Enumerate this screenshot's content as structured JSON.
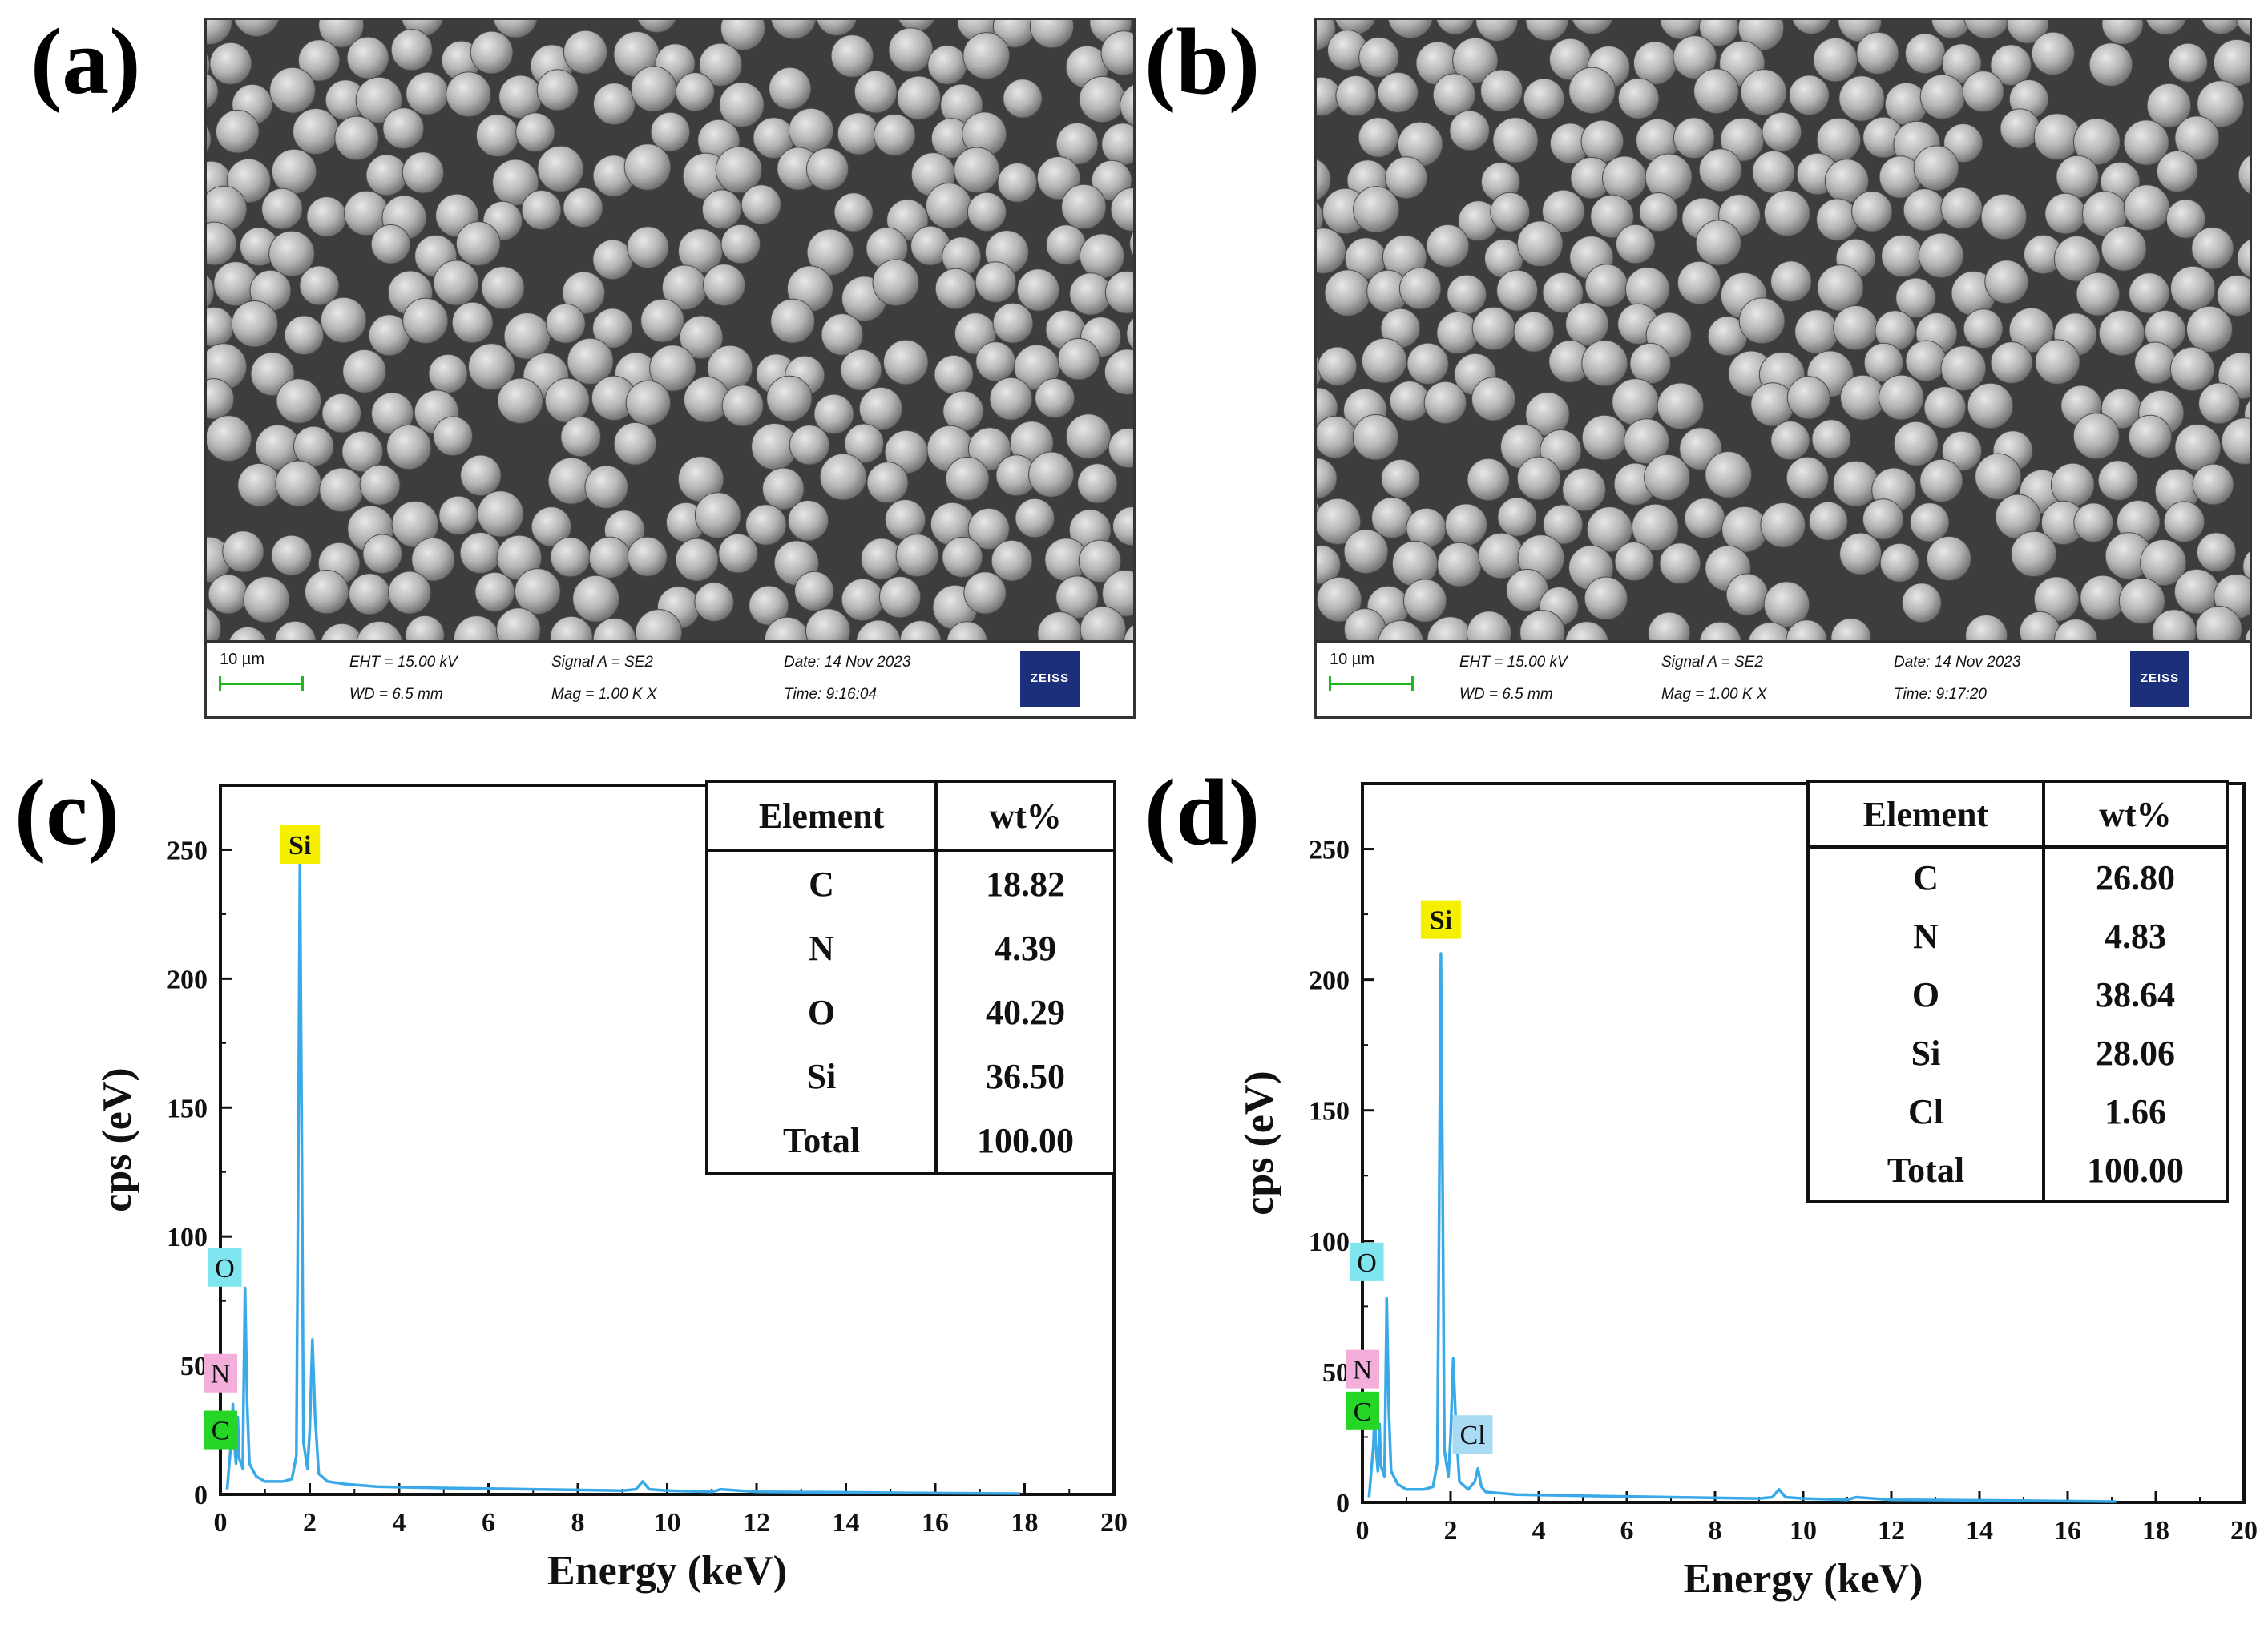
{
  "panels": {
    "a": {
      "letter": "(a)",
      "sem_info": {
        "scale_label": "10 µm",
        "eht": "EHT = 15.00 kV",
        "wd": "WD = 6.5 mm",
        "signal": "Signal A = SE2",
        "mag": "Mag =    1.00 K X",
        "date": "Date: 14 Nov 2023",
        "time": "Time: 9:16:04",
        "logo": "ZEISS"
      }
    },
    "b": {
      "letter": "(b)",
      "sem_info": {
        "scale_label": "10 µm",
        "eht": "EHT = 15.00 kV",
        "wd": "WD = 6.5 mm",
        "signal": "Signal A = SE2",
        "mag": "Mag =    1.00 K X",
        "date": "Date: 14 Nov 2023",
        "time": "Time: 9:17:20",
        "logo": "ZEISS"
      }
    },
    "c": {
      "letter": "(c)"
    },
    "d": {
      "letter": "(d)"
    }
  },
  "colors": {
    "spectrum": "#3aa9e8",
    "label_si": "#f5f000",
    "label_o": "#7fe6ef",
    "label_n": "#f4aedb",
    "label_c": "#26d626",
    "label_cl": "#a9dcf4"
  },
  "chart_data": [
    {
      "id": "c",
      "type": "line",
      "title": "",
      "xlabel": "Energy (keV)",
      "ylabel": "cps (eV)",
      "xlim": [
        0,
        20
      ],
      "ylim": [
        0,
        275
      ],
      "xticks": [
        0,
        2,
        4,
        6,
        8,
        10,
        12,
        14,
        16,
        18,
        20
      ],
      "yticks": [
        0,
        50,
        100,
        150,
        200,
        250
      ],
      "x": [
        0.15,
        0.25,
        0.28,
        0.3,
        0.35,
        0.39,
        0.42,
        0.5,
        0.52,
        0.55,
        0.6,
        0.65,
        0.8,
        1.0,
        1.2,
        1.4,
        1.6,
        1.7,
        1.74,
        1.78,
        1.82,
        1.86,
        1.95,
        2.0,
        2.06,
        2.12,
        2.2,
        2.4,
        2.8,
        3.5,
        5,
        7,
        9,
        9.3,
        9.45,
        9.6,
        10,
        11,
        11.2,
        12,
        14,
        16,
        17.9
      ],
      "y": [
        2,
        22,
        35,
        22,
        12,
        30,
        14,
        10,
        40,
        80,
        35,
        12,
        7,
        5,
        5,
        5,
        6,
        15,
        120,
        245,
        140,
        20,
        10,
        25,
        60,
        30,
        8,
        5,
        4,
        3,
        2.5,
        2,
        1.5,
        2,
        5,
        2,
        1.5,
        1,
        2,
        1,
        0.8,
        0.5,
        0.3
      ],
      "peak_labels": [
        {
          "text": "Si",
          "x": 1.78,
          "y": 252,
          "color": "label_si"
        },
        {
          "text": "O",
          "x": 0.1,
          "y": 88,
          "color": "label_o"
        },
        {
          "text": "N",
          "x": 0.0,
          "y": 47,
          "color": "label_n"
        },
        {
          "text": "C",
          "x": 0.0,
          "y": 25,
          "color": "label_c"
        }
      ],
      "table": {
        "headers": [
          "Element",
          "wt%"
        ],
        "rows": [
          [
            "C",
            "18.82"
          ],
          [
            "N",
            "4.39"
          ],
          [
            "O",
            "40.29"
          ],
          [
            "Si",
            "36.50"
          ],
          [
            "Total",
            "100.00"
          ]
        ]
      }
    },
    {
      "id": "d",
      "type": "line",
      "title": "",
      "xlabel": "Energy (keV)",
      "ylabel": "cps (eV)",
      "xlim": [
        0,
        20
      ],
      "ylim": [
        0,
        275
      ],
      "xticks": [
        0,
        2,
        4,
        6,
        8,
        10,
        12,
        14,
        16,
        18,
        20
      ],
      "yticks": [
        0,
        50,
        100,
        150,
        200,
        250
      ],
      "x": [
        0.15,
        0.25,
        0.28,
        0.3,
        0.35,
        0.39,
        0.42,
        0.5,
        0.52,
        0.55,
        0.6,
        0.65,
        0.8,
        1.0,
        1.2,
        1.4,
        1.6,
        1.7,
        1.74,
        1.78,
        1.82,
        1.86,
        1.95,
        2.0,
        2.06,
        2.12,
        2.2,
        2.4,
        2.55,
        2.62,
        2.7,
        2.8,
        3.5,
        5,
        7,
        9,
        9.3,
        9.45,
        9.6,
        10,
        11,
        11.2,
        12,
        14,
        16,
        17.1
      ],
      "y": [
        2,
        22,
        38,
        22,
        12,
        30,
        14,
        10,
        35,
        78,
        35,
        12,
        7,
        5,
        5,
        5,
        6,
        15,
        110,
        210,
        120,
        20,
        10,
        25,
        55,
        30,
        8,
        5,
        8,
        13,
        6,
        4,
        3,
        2.5,
        2,
        1.5,
        2,
        5,
        2,
        1.5,
        1,
        2,
        1,
        0.8,
        0.5,
        0.3
      ],
      "peak_labels": [
        {
          "text": "Si",
          "x": 1.78,
          "y": 223,
          "color": "label_si"
        },
        {
          "text": "O",
          "x": 0.1,
          "y": 92,
          "color": "label_o"
        },
        {
          "text": "N",
          "x": 0.0,
          "y": 51,
          "color": "label_n"
        },
        {
          "text": "C",
          "x": 0.0,
          "y": 35,
          "color": "label_c"
        },
        {
          "text": "Cl",
          "x": 2.5,
          "y": 26,
          "color": "label_cl"
        }
      ],
      "table": {
        "headers": [
          "Element",
          "wt%"
        ],
        "rows": [
          [
            "C",
            "26.80"
          ],
          [
            "N",
            "4.83"
          ],
          [
            "O",
            "38.64"
          ],
          [
            "Si",
            "28.06"
          ],
          [
            "Cl",
            "1.66"
          ],
          [
            "Total",
            "100.00"
          ]
        ]
      }
    }
  ]
}
